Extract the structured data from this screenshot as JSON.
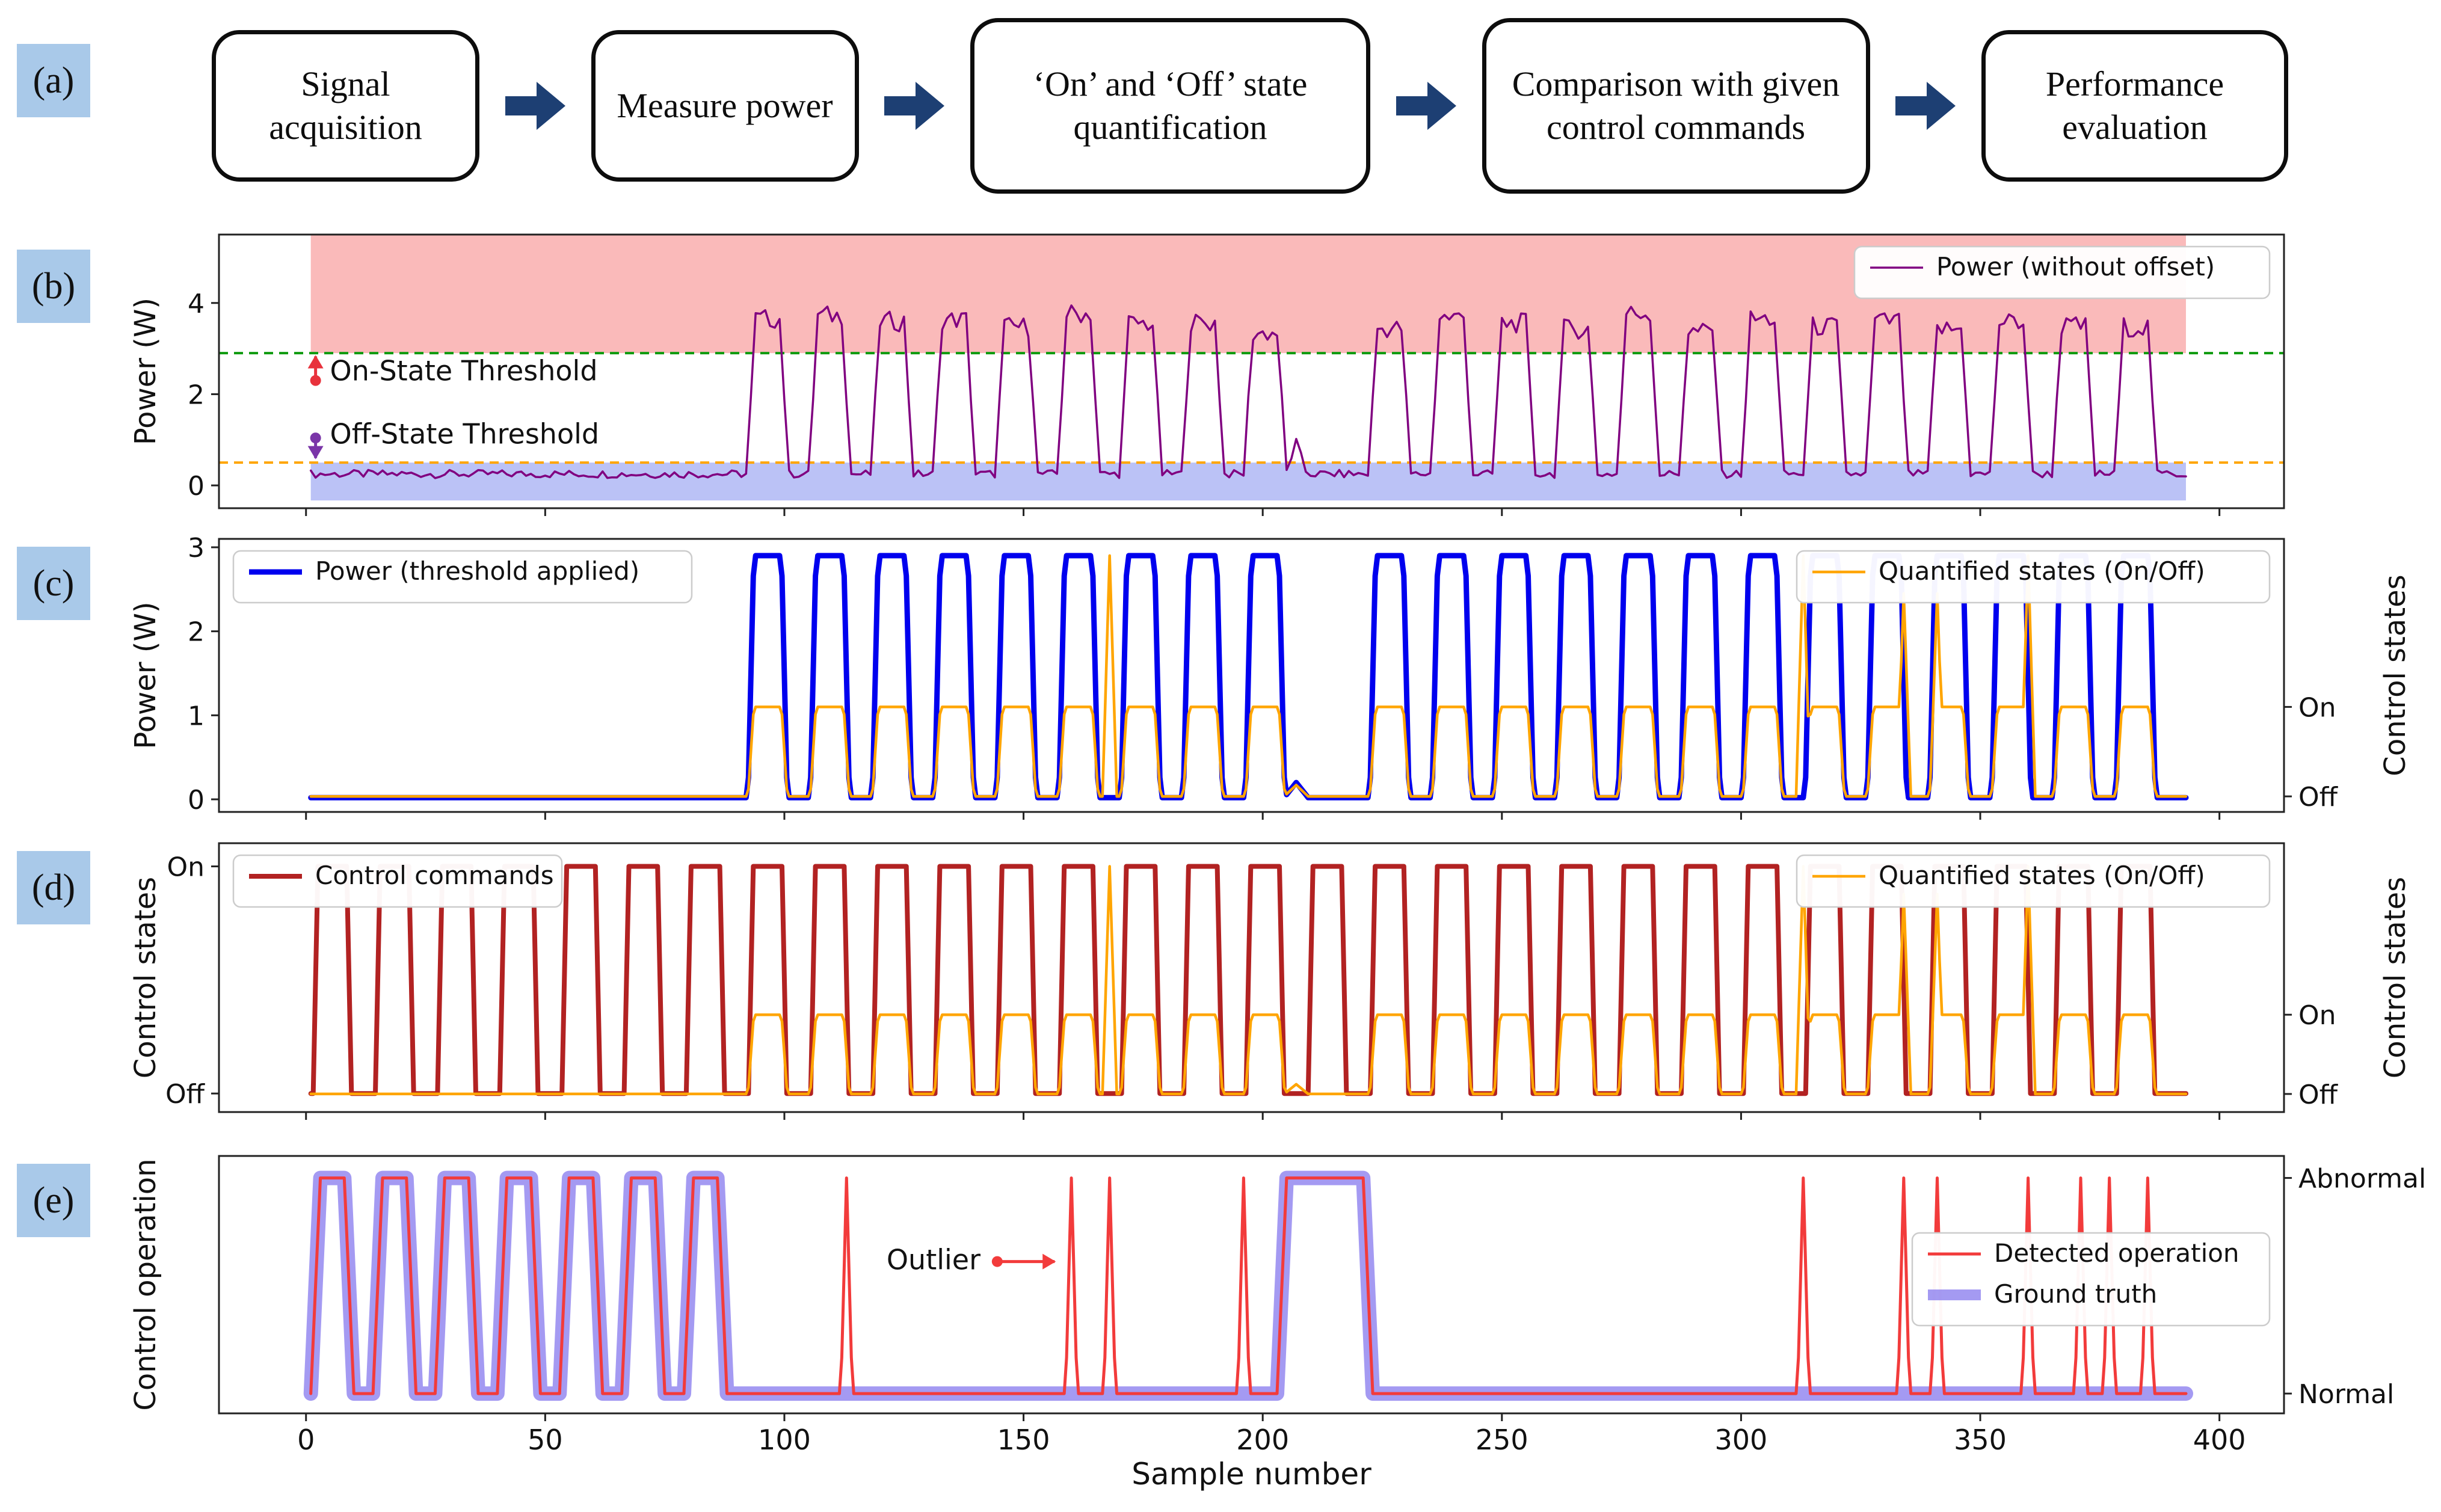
{
  "panel_labels": [
    "(a)",
    "(b)",
    "(c)",
    "(d)",
    "(e)"
  ],
  "colors": {
    "flow_arrow": "#1d3f73",
    "panel_label_bg": "#a9c9e9",
    "power_raw": "#800080",
    "on_threshold": "#0f9b0f",
    "off_threshold": "#ffa500",
    "power_thresholded": "#0000ee",
    "quantified": "#ffa500",
    "commands": "#b22222",
    "detected": "#f23b3b",
    "ground_truth": "#8678ee"
  },
  "flowchart": {
    "steps": [
      "Signal acquisition",
      "Measure power",
      "‘On’ and ‘Off’ state quantification",
      "Comparison with given control commands",
      "Performance evaluation"
    ]
  },
  "chart_data": {
    "type": "line",
    "x": {
      "label": "Sample number",
      "lim": [
        -18.2,
        413.5
      ],
      "ticks": [
        0,
        50,
        100,
        150,
        200,
        250,
        300,
        350,
        400
      ]
    },
    "waveforms": {
      "command_on": [
        [
          2,
          9
        ],
        [
          15,
          22
        ],
        [
          28,
          35
        ],
        [
          41,
          48
        ],
        [
          54,
          61
        ],
        [
          67,
          74
        ],
        [
          80,
          87
        ],
        [
          93,
          100
        ],
        [
          106,
          113
        ],
        [
          119,
          126
        ],
        [
          132,
          139
        ],
        [
          145,
          152
        ],
        [
          158,
          165
        ],
        [
          171,
          178
        ],
        [
          184,
          191
        ],
        [
          197,
          204
        ],
        [
          210,
          217
        ],
        [
          223,
          230
        ],
        [
          236,
          243
        ],
        [
          249,
          256
        ],
        [
          262,
          269
        ],
        [
          275,
          282
        ],
        [
          288,
          295
        ],
        [
          301,
          308
        ],
        [
          314,
          321
        ],
        [
          327,
          334
        ],
        [
          340,
          347
        ],
        [
          353,
          360
        ],
        [
          366,
          373
        ],
        [
          379,
          386
        ]
      ],
      "power_on": [
        [
          93,
          100
        ],
        [
          106,
          113
        ],
        [
          119,
          126
        ],
        [
          132,
          139
        ],
        [
          145,
          152
        ],
        [
          158,
          165
        ],
        [
          171,
          178
        ],
        [
          184,
          191
        ],
        [
          197,
          204
        ],
        [
          223,
          230
        ],
        [
          236,
          243
        ],
        [
          249,
          256
        ],
        [
          262,
          269
        ],
        [
          275,
          282
        ],
        [
          288,
          295
        ],
        [
          301,
          308
        ],
        [
          314,
          321
        ],
        [
          327,
          334
        ],
        [
          340,
          347
        ],
        [
          353,
          360
        ],
        [
          366,
          373
        ],
        [
          379,
          386
        ]
      ],
      "abnormal_truth": [
        [
          2,
          9
        ],
        [
          15,
          22
        ],
        [
          28,
          35
        ],
        [
          41,
          48
        ],
        [
          54,
          61
        ],
        [
          67,
          74
        ],
        [
          80,
          87
        ],
        [
          204,
          222
        ]
      ]
    },
    "panels": [
      {
        "id": "b",
        "ylabel": "Power (W)",
        "ylim": [
          -0.5,
          5.5
        ],
        "yticks": [
          0,
          2,
          4
        ],
        "hlines": [
          {
            "name": "on-threshold-line",
            "y": 2.9,
            "color": "#0f9b0f",
            "dash": true
          },
          {
            "name": "off-threshold-line",
            "y": 0.5,
            "color": "#ffa500",
            "dash": true
          }
        ],
        "bands": [
          {
            "name": "on-state-region",
            "x0": 1,
            "x1": 393,
            "y0": 2.9,
            "y1": 5.5,
            "color": "rgba(243,90,90,0.42)"
          },
          {
            "name": "off-state-region",
            "x0": 1,
            "x1": 393,
            "y0": -0.33,
            "y1": 0.5,
            "color": "rgba(105,120,235,0.45)"
          }
        ],
        "series": [
          {
            "name": "power-raw",
            "intervals": "power_on",
            "lo": 0.25,
            "hi": 3.55,
            "lw": 3.5,
            "color": "#800080",
            "step": 1,
            "ramp": 0.8,
            "x0": 1,
            "x1": 393,
            "noise": [
              0.09,
              0.22
            ],
            "peaks": [
              {
                "x": 207,
                "w": 2.2,
                "h": 0.95
              }
            ]
          }
        ],
        "legends": [
          {
            "pos": "tr",
            "entries": [
              {
                "label": "Power (without offset)",
                "color": "#800080",
                "lw": 3.5
              }
            ]
          }
        ],
        "annotations": [
          {
            "kind": "varrow",
            "x": 2,
            "y_from": 2.3,
            "y_to": 2.83,
            "color": "#e8323c"
          },
          {
            "kind": "text",
            "text": "On-State Threshold",
            "x": 5,
            "y": 2.3
          },
          {
            "kind": "varrow",
            "x": 2,
            "y_from": 1.04,
            "y_to": 0.6,
            "color": "#7a35a8"
          },
          {
            "kind": "text",
            "text": "Off-State Threshold",
            "x": 5,
            "y": 0.92
          }
        ]
      },
      {
        "id": "c",
        "ylabel": "Power (W)",
        "rlabel": "Control states",
        "ylim": [
          -0.15,
          3.1
        ],
        "yticks": [
          0,
          1,
          2,
          3
        ],
        "rticks": [
          [
            "On",
            1.1
          ],
          [
            "Off",
            0.035
          ]
        ],
        "series": [
          {
            "name": "power-thresholded",
            "intervals": "power_on",
            "lo": 0.02,
            "hi": 2.9,
            "lw": 9,
            "color": "#0000ee",
            "step": 0.5,
            "ramp": 0.6,
            "x0": 1,
            "x1": 393,
            "peaks": [
              {
                "x": 207,
                "w": 2.5,
                "h": 0.2
              }
            ]
          },
          {
            "name": "quantified-states",
            "intervals": "power_on",
            "lo": 0.035,
            "hi": 1.1,
            "lw": 4.5,
            "color": "#ffa500",
            "step": 0.5,
            "ramp": 0.6,
            "x0": 1,
            "x1": 393,
            "peaks": [
              {
                "x": 168,
                "w": 1.5,
                "h": 2.9
              },
              {
                "x": 313,
                "w": 1.5,
                "h": 2.9
              },
              {
                "x": 334,
                "w": 1.5,
                "h": 2.45
              },
              {
                "x": 341,
                "w": 1.5,
                "h": 2.45
              },
              {
                "x": 360,
                "w": 1.5,
                "h": 2.9
              },
              {
                "x": 207,
                "w": 2.5,
                "h": 0.17
              }
            ]
          }
        ],
        "legends": [
          {
            "pos": "tl",
            "entries": [
              {
                "label": "Power (threshold applied)",
                "color": "#0000ee",
                "lw": 9
              }
            ]
          },
          {
            "pos": "tr",
            "entries": [
              {
                "label": "Quantified states (On/Off)",
                "color": "#ffa500",
                "lw": 4.5
              }
            ]
          }
        ]
      },
      {
        "id": "d",
        "ylabel": "Control states",
        "rlabel": "Control states",
        "ylim": [
          -0.06,
          1.1
        ],
        "ytick_labels": [
          [
            "On",
            1.0
          ],
          [
            "Off",
            0.02
          ]
        ],
        "rticks": [
          [
            "On",
            0.36
          ],
          [
            "Off",
            0.018
          ]
        ],
        "series": [
          {
            "name": "control-commands",
            "intervals": "command_on",
            "lo": 0.02,
            "hi": 1.0,
            "lw": 8,
            "color": "#b22222",
            "step": 0.5,
            "ramp": 0.5,
            "x0": 1,
            "x1": 393
          },
          {
            "name": "quantified-states",
            "intervals": "power_on",
            "lo": 0.018,
            "hi": 0.36,
            "lw": 4.5,
            "color": "#ffa500",
            "step": 0.5,
            "ramp": 0.6,
            "x0": 1,
            "x1": 393,
            "peaks": [
              {
                "x": 168,
                "w": 1.5,
                "h": 1.0
              },
              {
                "x": 313,
                "w": 1.5,
                "h": 1.0
              },
              {
                "x": 334,
                "w": 1.5,
                "h": 0.88
              },
              {
                "x": 341,
                "w": 1.5,
                "h": 0.88
              },
              {
                "x": 360,
                "w": 1.5,
                "h": 1.0
              },
              {
                "x": 207,
                "w": 2.5,
                "h": 0.06
              }
            ]
          }
        ],
        "legends": [
          {
            "pos": "tl",
            "entries": [
              {
                "label": "Control commands",
                "color": "#b22222",
                "lw": 8
              }
            ]
          },
          {
            "pos": "tr",
            "entries": [
              {
                "label": "Quantified states (On/Off)",
                "color": "#ffa500",
                "lw": 4.5
              }
            ]
          }
        ]
      },
      {
        "id": "e",
        "ylabel": "Control operation",
        "ylim": [
          -0.07,
          1.1
        ],
        "rticks": [
          [
            "Abnormal",
            1.0
          ],
          [
            "Normal",
            0.02
          ]
        ],
        "series": [
          {
            "name": "ground-truth",
            "intervals": "abnormal_truth",
            "lo": 0.02,
            "hi": 1.0,
            "lw": 24,
            "color": "#8678ee",
            "opacity": 0.75,
            "step": 0.5,
            "ramp": 1.0,
            "x0": 1,
            "x1": 393
          },
          {
            "name": "detected-operation",
            "intervals": "abnormal_truth",
            "lo": 0.02,
            "hi": 1.0,
            "lw": 5,
            "color": "#f23b3b",
            "step": 0.5,
            "ramp": 1.0,
            "x0": 1,
            "x1": 393,
            "peaks": [
              {
                "x": 113,
                "w": 1.2,
                "h": 1.0
              },
              {
                "x": 160,
                "w": 1.2,
                "h": 1.0
              },
              {
                "x": 168,
                "w": 1.2,
                "h": 1.0
              },
              {
                "x": 196,
                "w": 1.2,
                "h": 1.0
              },
              {
                "x": 313,
                "w": 1.2,
                "h": 1.0
              },
              {
                "x": 334,
                "w": 1.2,
                "h": 1.0
              },
              {
                "x": 341,
                "w": 1.2,
                "h": 1.0
              },
              {
                "x": 360,
                "w": 1.2,
                "h": 1.0
              },
              {
                "x": 371,
                "w": 1.2,
                "h": 1.0
              },
              {
                "x": 377,
                "w": 1.2,
                "h": 1.0
              },
              {
                "x": 385,
                "w": 1.2,
                "h": 1.0
              }
            ]
          }
        ],
        "legends": [
          {
            "pos": "mr",
            "entries": [
              {
                "label": "Detected operation",
                "color": "#f23b3b",
                "lw": 5
              },
              {
                "label": "Ground truth",
                "color": "#8678ee",
                "lw": 18,
                "opacity": 0.75
              }
            ]
          }
        ],
        "annotations": [
          {
            "kind": "text",
            "text": "Outlier",
            "x": 141,
            "y": 0.585,
            "anchor": "end"
          },
          {
            "kind": "harrow",
            "x_from": 144.5,
            "x_to": 156.5,
            "y": 0.62,
            "color": "#f23b3b"
          }
        ]
      }
    ]
  }
}
